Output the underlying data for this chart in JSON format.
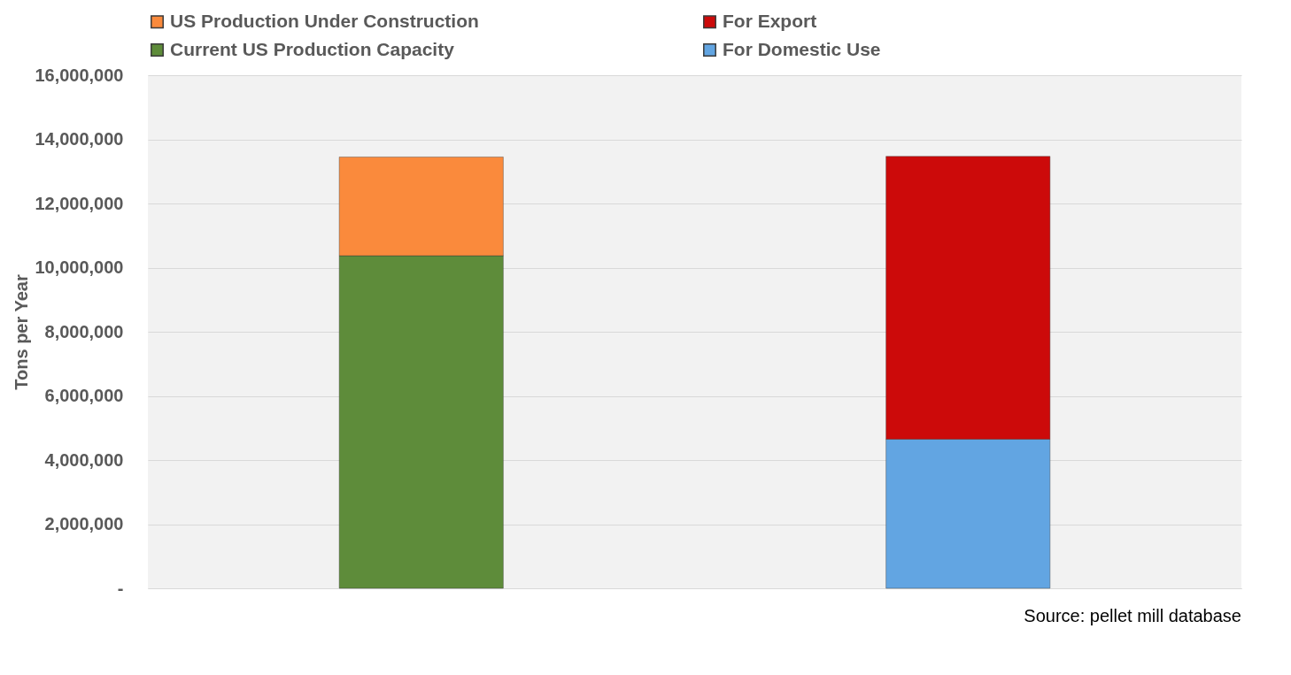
{
  "chart_data": {
    "type": "bar",
    "ylabel": "Tons per Year",
    "categories": [
      null,
      null
    ],
    "stacked": true,
    "series": [
      {
        "name": "Current US Production Capacity",
        "color": "#5e8c3a",
        "values": [
          10370000,
          null
        ]
      },
      {
        "name": "US Production Under Construction",
        "color": "#fa8a3c",
        "values": [
          3080000,
          null
        ]
      },
      {
        "name": "For Domestic Use",
        "color": "#62a5e2",
        "values": [
          null,
          4650000
        ]
      },
      {
        "name": "For Export",
        "color": "#cc0a0a",
        "values": [
          null,
          8820000
        ]
      }
    ],
    "ylim": [
      0,
      16000000
    ],
    "yticks": [
      {
        "value": 0,
        "label": "-"
      },
      {
        "value": 2000000,
        "label": "2,000,000"
      },
      {
        "value": 4000000,
        "label": "4,000,000"
      },
      {
        "value": 6000000,
        "label": "6,000,000"
      },
      {
        "value": 8000000,
        "label": "8,000,000"
      },
      {
        "value": 10000000,
        "label": "10,000,000"
      },
      {
        "value": 12000000,
        "label": "12,000,000"
      },
      {
        "value": 14000000,
        "label": "14,000,000"
      },
      {
        "value": 16000000,
        "label": "16,000,000"
      }
    ],
    "grid": "y",
    "legend": "top",
    "annotations": [
      "Source: pellet mill database"
    ]
  }
}
